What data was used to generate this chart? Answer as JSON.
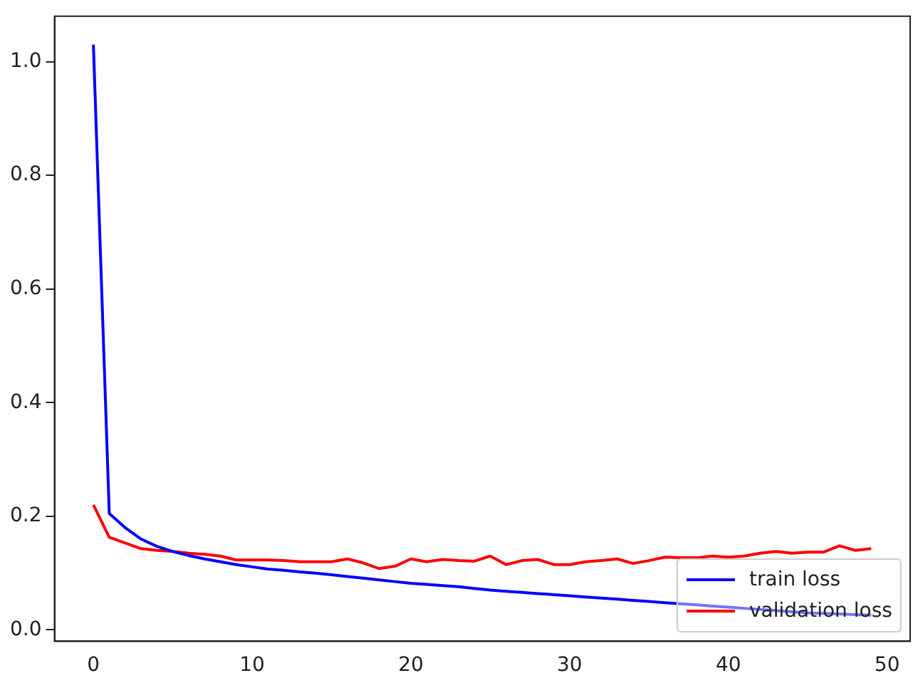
{
  "chart_data": {
    "type": "line",
    "x": [
      0,
      1,
      2,
      3,
      4,
      5,
      6,
      7,
      8,
      9,
      10,
      11,
      12,
      13,
      14,
      15,
      16,
      17,
      18,
      19,
      20,
      21,
      22,
      23,
      24,
      25,
      26,
      27,
      28,
      29,
      30,
      31,
      32,
      33,
      34,
      35,
      36,
      37,
      38,
      39,
      40,
      41,
      42,
      43,
      44,
      45,
      46,
      47,
      48,
      49
    ],
    "series": [
      {
        "name": "train loss",
        "color": "#0000ff",
        "values": [
          1.03,
          0.205,
          0.18,
          0.16,
          0.147,
          0.138,
          0.131,
          0.125,
          0.12,
          0.115,
          0.111,
          0.107,
          0.105,
          0.102,
          0.1,
          0.097,
          0.094,
          0.091,
          0.088,
          0.085,
          0.082,
          0.08,
          0.078,
          0.076,
          0.073,
          0.07,
          0.068,
          0.066,
          0.064,
          0.062,
          0.06,
          0.058,
          0.056,
          0.054,
          0.052,
          0.05,
          0.048,
          0.046,
          0.044,
          0.042,
          0.04,
          0.038,
          0.036,
          0.034,
          0.032,
          0.03,
          0.029,
          0.028,
          0.027,
          0.026
        ]
      },
      {
        "name": "validation loss",
        "color": "#ff0000",
        "values": [
          0.22,
          0.163,
          0.153,
          0.143,
          0.14,
          0.138,
          0.135,
          0.133,
          0.13,
          0.123,
          0.123,
          0.123,
          0.122,
          0.12,
          0.12,
          0.12,
          0.125,
          0.118,
          0.108,
          0.112,
          0.125,
          0.12,
          0.124,
          0.122,
          0.121,
          0.13,
          0.115,
          0.122,
          0.124,
          0.115,
          0.115,
          0.12,
          0.122,
          0.125,
          0.117,
          0.122,
          0.128,
          0.127,
          0.127,
          0.13,
          0.128,
          0.13,
          0.135,
          0.138,
          0.135,
          0.137,
          0.137,
          0.148,
          0.14,
          0.143
        ]
      }
    ],
    "xlim": [
      -2.45,
      51.45
    ],
    "xticks": [
      0,
      10,
      20,
      30,
      40,
      50
    ],
    "ylim": [
      -0.02,
      1.08
    ],
    "yticks": [
      {
        "value": 0,
        "label": "0.0"
      },
      {
        "value": 0.2,
        "label": "0.2"
      },
      {
        "value": 0.4,
        "label": "0.4"
      },
      {
        "value": 0.6,
        "label": "0.6"
      },
      {
        "value": 0.8,
        "label": "0.8"
      },
      {
        "value": 1,
        "label": "1.0"
      }
    ],
    "grid": false,
    "legend": "bottom right",
    "marker": "none",
    "line_style": "solid"
  }
}
